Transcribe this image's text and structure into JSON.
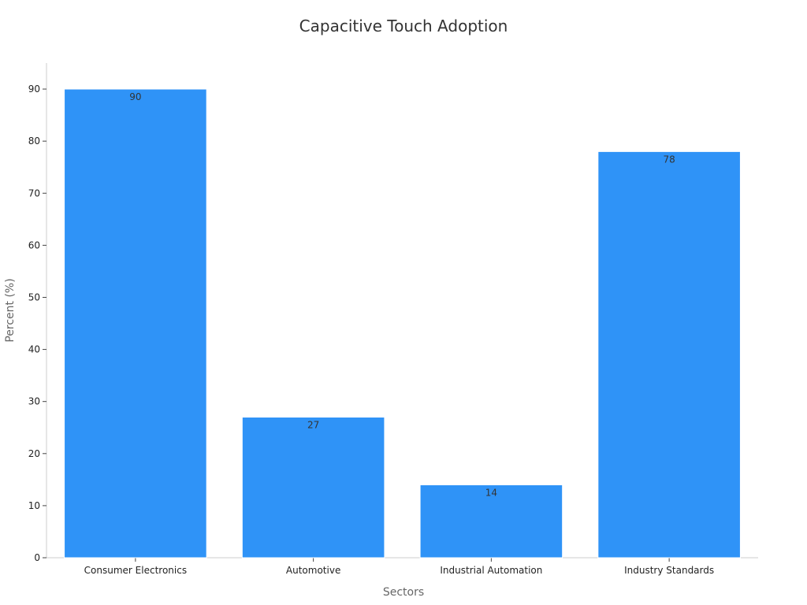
{
  "chart_data": {
    "type": "bar",
    "title": "Capacitive Touch Adoption",
    "xlabel": "Sectors",
    "ylabel": "Percent (%)",
    "categories": [
      "Consumer Electronics",
      "Automotive",
      "Industrial Automation",
      "Industry Standards"
    ],
    "values": [
      90,
      27,
      14,
      78
    ],
    "ylim": [
      0,
      95
    ],
    "yticks": [
      0,
      10,
      20,
      30,
      40,
      50,
      60,
      70,
      80,
      90
    ],
    "bar_color": "#2f93f7",
    "grid": false,
    "legend": "none",
    "data_labels": [
      "90",
      "27",
      "14",
      "78"
    ]
  }
}
